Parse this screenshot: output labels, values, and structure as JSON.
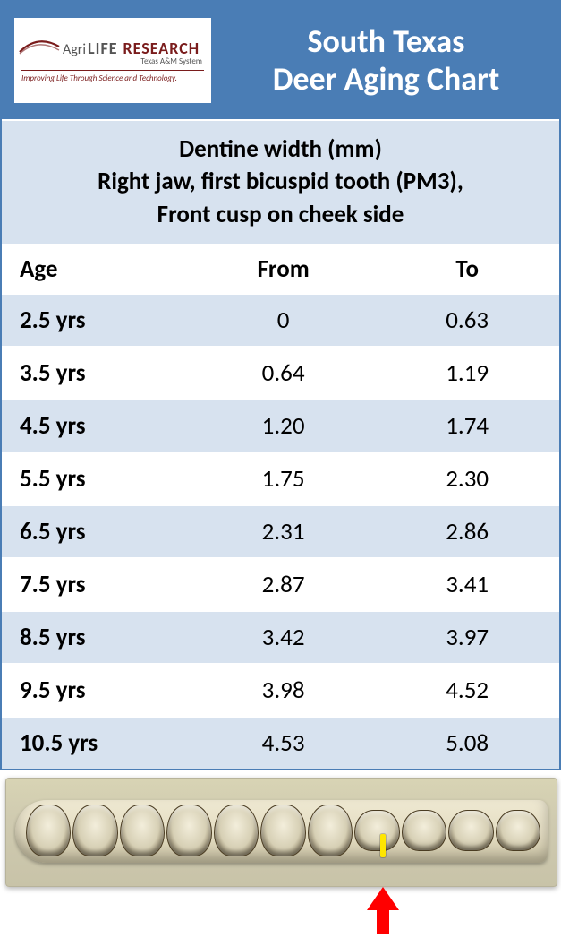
{
  "header": {
    "logo": {
      "brand_agri": "Agri",
      "brand_life": "LIFE",
      "brand_research": "RESEARCH",
      "subline": "Texas A&M System",
      "tagline": "Improving Life Through Science and Technology.",
      "swoosh_color": "#7a1c1c",
      "text_color": "#555555"
    },
    "title_line1": "South Texas",
    "title_line2": "Deer Aging Chart",
    "title_color": "#ffffff",
    "header_bg": "#4a7db5"
  },
  "subtitle": {
    "line1": "Dentine width (mm)",
    "line2": "Right jaw, first bicuspid tooth (PM3),",
    "line3": "Front cusp on cheek side",
    "bg": "#d7e2ef",
    "fontsize": 27
  },
  "table": {
    "columns": [
      "Age",
      "From",
      "To"
    ],
    "rows": [
      {
        "age": "2.5 yrs",
        "from": "0",
        "to": "0.63"
      },
      {
        "age": "3.5 yrs",
        "from": "0.64",
        "to": "1.19"
      },
      {
        "age": "4.5 yrs",
        "from": "1.20",
        "to": "1.74"
      },
      {
        "age": "5.5 yrs",
        "from": "1.75",
        "to": "2.30"
      },
      {
        "age": "6.5 yrs",
        "from": "2.31",
        "to": "2.86"
      },
      {
        "age": "7.5 yrs",
        "from": "2.87",
        "to": "3.41"
      },
      {
        "age": "8.5 yrs",
        "from": "3.42",
        "to": "3.97"
      },
      {
        "age": "9.5 yrs",
        "from": "3.98",
        "to": "4.52"
      },
      {
        "age": "10.5 yrs",
        "from": "4.53",
        "to": "5.08"
      }
    ],
    "stripe_odd_bg": "#d7e2ef",
    "stripe_even_bg": "#ffffff",
    "fontsize": 27,
    "border_color": "#ffffff"
  },
  "photo": {
    "arrow_color": "#ff0000",
    "indicator_color": "#ffe600",
    "tooth_count_large": 7,
    "tooth_count_small": 4
  }
}
